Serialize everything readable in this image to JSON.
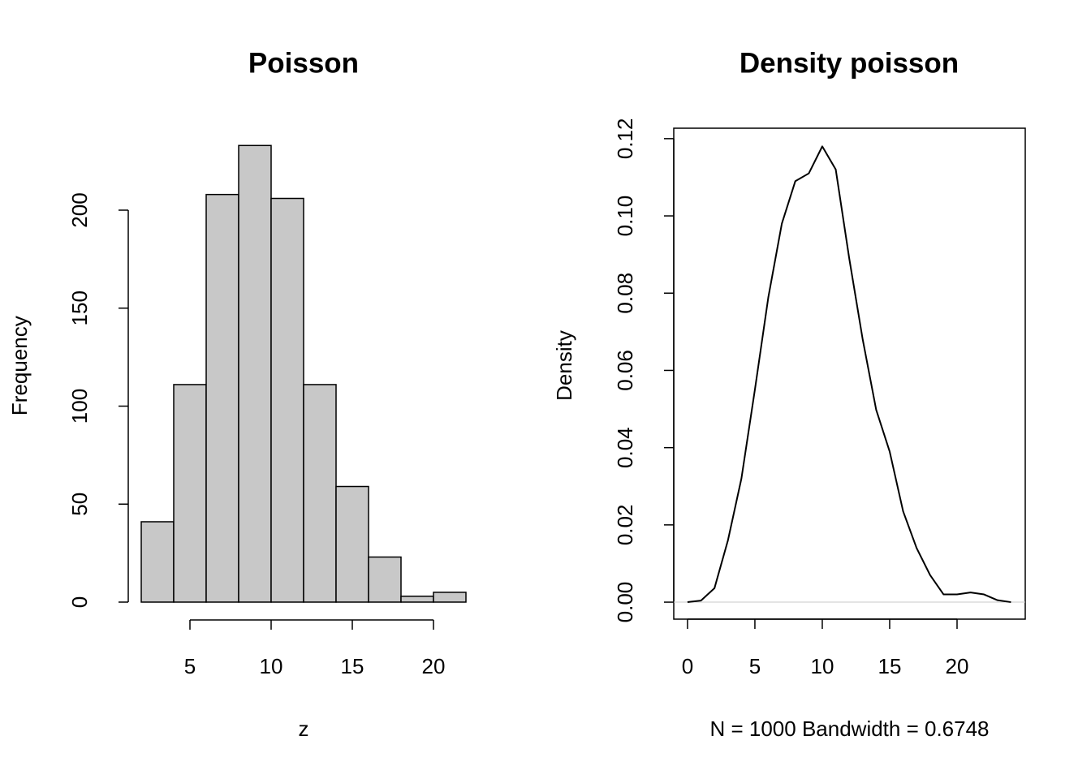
{
  "chart_data": [
    {
      "type": "histogram",
      "title": "Poisson",
      "x_label": "z",
      "y_label": "Frequency",
      "bins": [
        2,
        4,
        6,
        8,
        10,
        12,
        14,
        16,
        18,
        20,
        22
      ],
      "values": [
        41,
        111,
        208,
        233,
        206,
        111,
        59,
        23,
        3,
        5
      ],
      "color": "#c8c8c8",
      "xlim": [
        2,
        22
      ],
      "ylim": [
        0,
        233
      ],
      "xticks": [
        5,
        10,
        15,
        20
      ],
      "yticks": [
        0,
        50,
        100,
        150,
        200
      ]
    },
    {
      "type": "line",
      "title": "Density poisson",
      "x_label": "N = 1000   Bandwidth = 0.6748",
      "y_label": "Density",
      "x": [
        0,
        1,
        2,
        3,
        4,
        5,
        6,
        7,
        8,
        9,
        10,
        11,
        12,
        13,
        14,
        15,
        16,
        17,
        18,
        19,
        20,
        21,
        22,
        23,
        24
      ],
      "series": [
        {
          "color": "#000000",
          "values": [
            0.0,
            0.0004,
            0.0036,
            0.016,
            0.032,
            0.055,
            0.079,
            0.098,
            0.109,
            0.111,
            0.118,
            0.112,
            0.089,
            0.068,
            0.0498,
            0.039,
            0.0235,
            0.014,
            0.007,
            0.002,
            0.002,
            0.0025,
            0.002,
            0.0005,
            0.0
          ]
        }
      ],
      "xlim": [
        -1.02,
        25.06
      ],
      "ylim": [
        -0.0044,
        0.1227
      ],
      "xticks": [
        0,
        5,
        10,
        15,
        20
      ],
      "yticks": [
        {
          "value": 0,
          "label": "0.00"
        },
        {
          "value": 0.02,
          "label": "0.02"
        },
        {
          "value": 0.04,
          "label": "0.04"
        },
        {
          "value": 0.06,
          "label": "0.06"
        },
        {
          "value": 0.08,
          "label": "0.08"
        },
        {
          "value": 0.1,
          "label": "0.10"
        },
        {
          "value": 0.12,
          "label": "0.12"
        }
      ]
    }
  ]
}
